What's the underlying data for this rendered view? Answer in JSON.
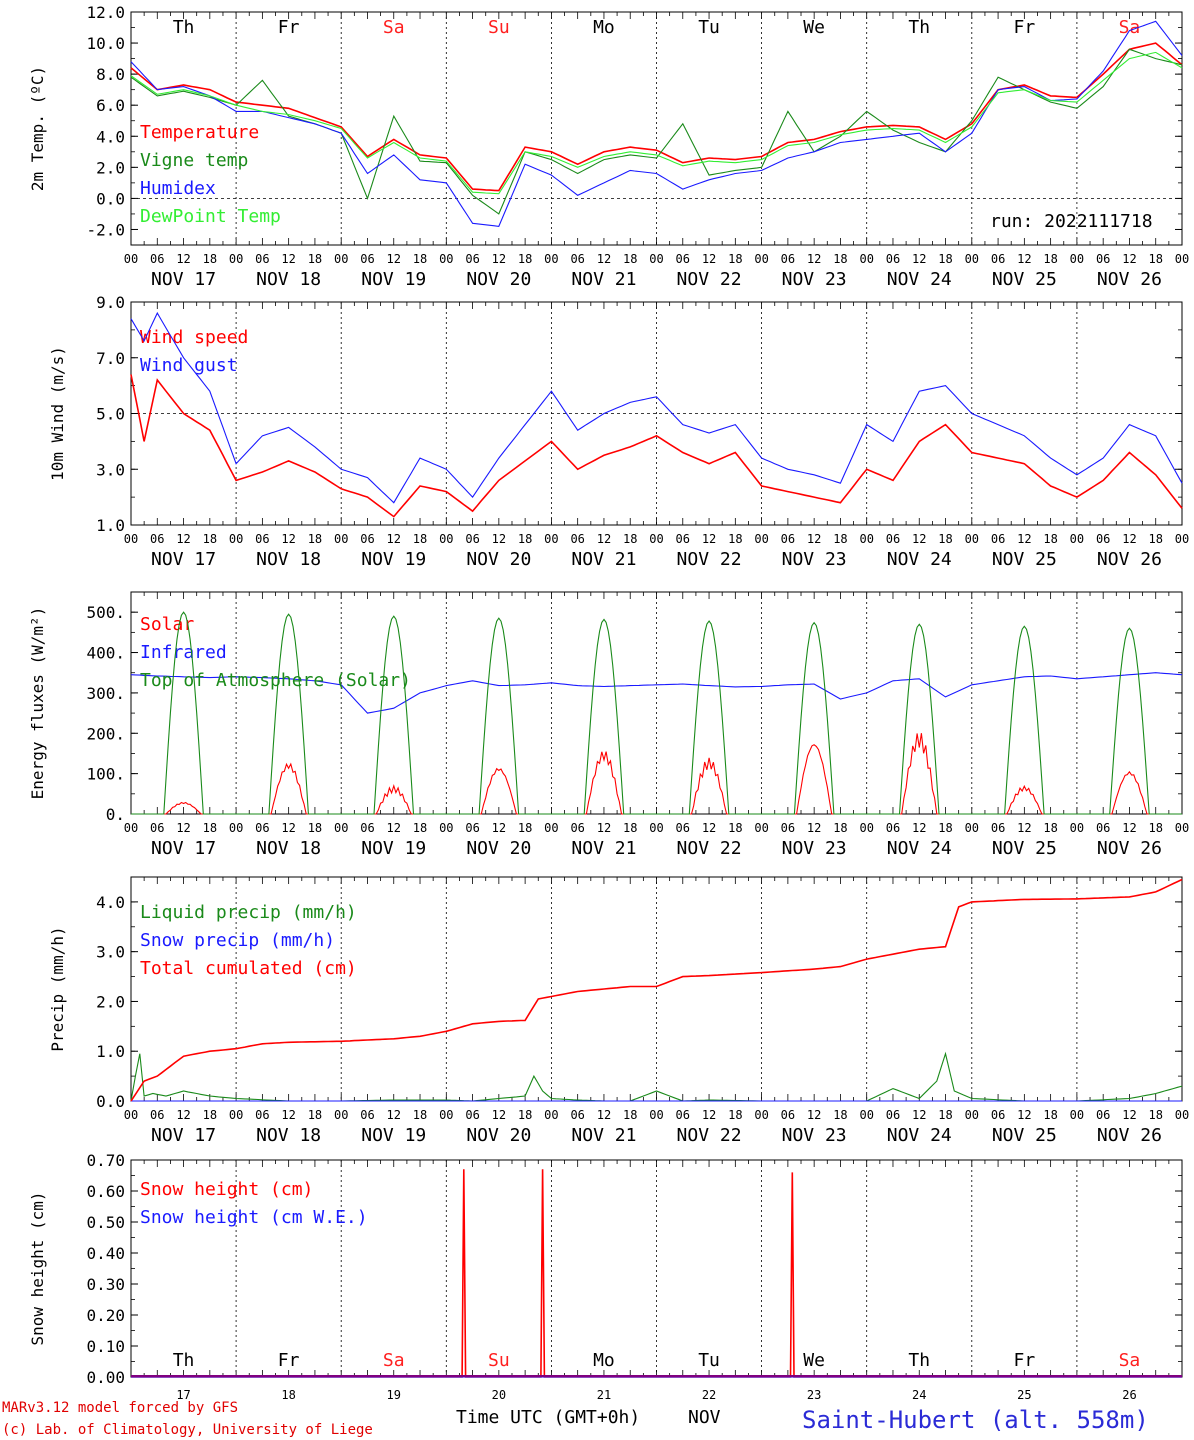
{
  "colors": {
    "red": "#ff0000",
    "green": "#1a8a1a",
    "blue": "#1a1aff",
    "lightgreen": "#33ee33",
    "weekend": "#ff2020",
    "purple": "#800080"
  },
  "dates": [
    "NOV 17",
    "NOV 18",
    "NOV 19",
    "NOV 20",
    "NOV 21",
    "NOV 22",
    "NOV 23",
    "NOV 24",
    "NOV 25",
    "NOV 26"
  ],
  "day_numbers": [
    "17",
    "18",
    "19",
    "20",
    "21",
    "22",
    "23",
    "24",
    "25",
    "26"
  ],
  "weekdays": [
    "Th",
    "Fr",
    "Sa",
    "Su",
    "Mo",
    "Tu",
    "We",
    "Th",
    "Fr",
    "Sa"
  ],
  "weekend_flags": [
    false,
    false,
    true,
    true,
    false,
    false,
    false,
    false,
    false,
    true
  ],
  "hour_ticks": [
    "00",
    "06",
    "12",
    "18"
  ],
  "final_hour_tick": "00",
  "run_label": "run: 2022111718",
  "footer": {
    "model": "MARv3.12 model forced by GFS",
    "lab": "(c) Lab. of Climatology, University of Liege",
    "time_axis": "Time UTC (GMT+0h)",
    "month": "NOV",
    "station": "Saint-Hubert (alt. 558m)"
  },
  "chart_data": [
    {
      "type": "line",
      "ylabel": "2m Temp. (ºC)",
      "ylim": [
        -3,
        12
      ],
      "yticks": [
        "12.0",
        "10.0",
        "8.0",
        "6.0",
        "4.0",
        "2.0",
        "0.0",
        "-2.0"
      ],
      "x_unit": "hours since NOV 17 00 UTC",
      "series": [
        {
          "name": "Temperature",
          "color": "red",
          "x": [
            0,
            6,
            12,
            18,
            24,
            30,
            36,
            42,
            48,
            54,
            60,
            66,
            72,
            78,
            84,
            90,
            96,
            102,
            108,
            114,
            120,
            126,
            132,
            138,
            144,
            150,
            156,
            162,
            168,
            174,
            180,
            186,
            192,
            198,
            204,
            210,
            216,
            222,
            228,
            234,
            240
          ],
          "values": [
            8.4,
            7.0,
            7.3,
            7.0,
            6.2,
            6.0,
            5.8,
            5.2,
            4.6,
            2.7,
            3.8,
            2.8,
            2.6,
            0.6,
            0.5,
            3.3,
            3.0,
            2.2,
            3.0,
            3.3,
            3.1,
            2.3,
            2.6,
            2.5,
            2.7,
            3.6,
            3.8,
            4.3,
            4.6,
            4.7,
            4.6,
            3.8,
            4.8,
            7.0,
            7.3,
            6.6,
            6.5,
            8.0,
            9.6,
            10.0,
            8.6
          ]
        },
        {
          "name": "Vigne temp",
          "color": "green",
          "x": [
            0,
            6,
            12,
            18,
            24,
            30,
            36,
            42,
            48,
            54,
            60,
            66,
            72,
            78,
            84,
            90,
            96,
            102,
            108,
            114,
            120,
            126,
            132,
            138,
            144,
            150,
            156,
            162,
            168,
            174,
            180,
            186,
            192,
            198,
            204,
            210,
            216,
            222,
            228,
            234,
            240
          ],
          "values": [
            7.8,
            6.6,
            6.9,
            6.5,
            6.0,
            7.6,
            5.3,
            4.8,
            4.2,
            0.0,
            5.3,
            2.4,
            2.3,
            0.2,
            -1.0,
            3.0,
            2.5,
            1.6,
            2.5,
            2.8,
            2.6,
            4.8,
            1.5,
            1.8,
            2.0,
            5.6,
            3.0,
            4.0,
            5.6,
            4.4,
            3.6,
            3.0,
            5.0,
            7.8,
            7.0,
            6.2,
            5.8,
            7.2,
            9.6,
            9.0,
            8.6
          ]
        },
        {
          "name": "Humidex",
          "color": "blue",
          "x": [
            0,
            6,
            12,
            18,
            24,
            30,
            36,
            42,
            48,
            54,
            60,
            66,
            72,
            78,
            84,
            90,
            96,
            102,
            108,
            114,
            120,
            126,
            132,
            138,
            144,
            150,
            156,
            162,
            168,
            174,
            180,
            186,
            192,
            198,
            204,
            210,
            216,
            222,
            228,
            234,
            240
          ],
          "values": [
            8.8,
            7.0,
            7.2,
            6.6,
            5.6,
            5.6,
            5.2,
            4.8,
            4.2,
            1.6,
            2.8,
            1.2,
            1.0,
            -1.6,
            -1.8,
            2.2,
            1.5,
            0.2,
            1.0,
            1.8,
            1.6,
            0.6,
            1.2,
            1.6,
            1.8,
            2.6,
            3.0,
            3.6,
            3.8,
            4.0,
            4.2,
            3.0,
            4.2,
            7.0,
            7.2,
            6.3,
            6.4,
            8.2,
            10.8,
            11.4,
            9.2
          ]
        },
        {
          "name": "DewPoint Temp",
          "color": "lightgreen",
          "x": [
            0,
            6,
            12,
            18,
            24,
            30,
            36,
            42,
            48,
            54,
            60,
            66,
            72,
            78,
            84,
            90,
            96,
            102,
            108,
            114,
            120,
            126,
            132,
            138,
            144,
            150,
            156,
            162,
            168,
            174,
            180,
            186,
            192,
            198,
            204,
            210,
            216,
            222,
            228,
            234,
            240
          ],
          "values": [
            7.9,
            6.7,
            7.0,
            6.6,
            6.0,
            5.6,
            5.4,
            5.0,
            4.5,
            2.6,
            3.6,
            2.6,
            2.4,
            0.4,
            0.3,
            3.0,
            2.7,
            2.0,
            2.7,
            3.0,
            2.8,
            2.1,
            2.4,
            2.3,
            2.5,
            3.4,
            3.6,
            4.1,
            4.4,
            4.5,
            4.4,
            3.6,
            4.6,
            6.8,
            7.0,
            6.3,
            6.2,
            7.6,
            9.0,
            9.4,
            8.4
          ]
        }
      ]
    },
    {
      "type": "line",
      "ylabel": "10m Wind (m/s)",
      "ylim": [
        1,
        9
      ],
      "yticks": [
        "9.0",
        "7.0",
        "5.0",
        "3.0",
        "1.0"
      ],
      "x_unit": "hours since NOV 17 00 UTC",
      "series": [
        {
          "name": "Wind speed",
          "color": "red",
          "x": [
            0,
            3,
            6,
            12,
            18,
            24,
            30,
            36,
            42,
            48,
            54,
            60,
            66,
            72,
            78,
            84,
            90,
            96,
            102,
            108,
            114,
            120,
            126,
            132,
            138,
            144,
            150,
            156,
            162,
            168,
            174,
            180,
            186,
            192,
            198,
            204,
            210,
            216,
            222,
            228,
            234,
            240
          ],
          "values": [
            6.4,
            4.0,
            6.2,
            5.0,
            4.4,
            2.6,
            2.9,
            3.3,
            2.9,
            2.3,
            2.0,
            1.3,
            2.4,
            2.2,
            1.5,
            2.6,
            3.3,
            4.0,
            3.0,
            3.5,
            3.8,
            4.2,
            3.6,
            3.2,
            3.6,
            2.4,
            2.2,
            2.0,
            1.8,
            3.0,
            2.6,
            4.0,
            4.6,
            3.6,
            3.4,
            3.2,
            2.4,
            2.0,
            2.6,
            3.6,
            2.8,
            1.6
          ]
        },
        {
          "name": "Wind gust",
          "color": "blue",
          "x": [
            0,
            3,
            6,
            12,
            18,
            24,
            30,
            36,
            42,
            48,
            54,
            60,
            66,
            72,
            78,
            84,
            90,
            96,
            102,
            108,
            114,
            120,
            126,
            132,
            138,
            144,
            150,
            156,
            162,
            168,
            174,
            180,
            186,
            192,
            198,
            204,
            210,
            216,
            222,
            228,
            234,
            240
          ],
          "values": [
            8.4,
            7.6,
            8.6,
            7.0,
            5.8,
            3.2,
            4.2,
            4.5,
            3.8,
            3.0,
            2.7,
            1.8,
            3.4,
            3.0,
            2.0,
            3.4,
            4.6,
            5.8,
            4.4,
            5.0,
            5.4,
            5.6,
            4.6,
            4.3,
            4.6,
            3.4,
            3.0,
            2.8,
            2.5,
            4.6,
            4.0,
            5.8,
            6.0,
            5.0,
            4.6,
            4.2,
            3.4,
            2.8,
            3.4,
            4.6,
            4.2,
            2.5
          ]
        }
      ]
    },
    {
      "type": "line",
      "ylabel": "Energy fluxes (W/m²)",
      "ylim": [
        0,
        550
      ],
      "yticks": [
        "500.",
        "400.",
        "300.",
        "200.",
        "100.",
        "0."
      ],
      "x_unit": "hours since NOV 17 00 UTC",
      "toa_peaks": [
        500,
        495,
        490,
        485,
        482,
        478,
        474,
        470,
        465,
        460
      ],
      "solar_peaks": [
        30,
        130,
        70,
        120,
        160,
        140,
        185,
        205,
        70,
        110
      ],
      "series": [
        {
          "name": "Solar",
          "color": "red"
        },
        {
          "name": "Infrared",
          "color": "blue",
          "x": [
            0,
            6,
            12,
            18,
            24,
            30,
            36,
            42,
            48,
            54,
            60,
            66,
            72,
            78,
            84,
            90,
            96,
            102,
            108,
            114,
            120,
            126,
            132,
            138,
            144,
            150,
            156,
            162,
            168,
            174,
            180,
            186,
            192,
            198,
            204,
            210,
            216,
            222,
            228,
            234,
            240
          ],
          "values": [
            345,
            342,
            340,
            338,
            340,
            338,
            335,
            330,
            320,
            250,
            262,
            300,
            318,
            330,
            318,
            320,
            325,
            318,
            316,
            318,
            320,
            322,
            318,
            315,
            316,
            320,
            322,
            285,
            300,
            330,
            335,
            290,
            320,
            330,
            340,
            342,
            335,
            340,
            345,
            350,
            345
          ]
        },
        {
          "name": "Top of Atmosphere (Solar)",
          "color": "green"
        }
      ]
    },
    {
      "type": "line",
      "ylabel": "Precip (mm/h)",
      "ylim": [
        0,
        4.5
      ],
      "yticks": [
        "4.0",
        "3.0",
        "2.0",
        "1.0",
        "0.0"
      ],
      "x_unit": "hours since NOV 17 00 UTC",
      "series": [
        {
          "name": "Liquid precip (mm/h)",
          "color": "green",
          "x": [
            0,
            1,
            2,
            3,
            5,
            8,
            12,
            18,
            24,
            36,
            48,
            60,
            72,
            78,
            84,
            90,
            92,
            94,
            96,
            102,
            108,
            114,
            120,
            126,
            132,
            144,
            156,
            168,
            174,
            180,
            184,
            186,
            188,
            192,
            204,
            216,
            228,
            234,
            240
          ],
          "values": [
            0,
            0.5,
            0.95,
            0.1,
            0.15,
            0.1,
            0.2,
            0.1,
            0.05,
            0,
            0,
            0.02,
            0.02,
            0,
            0.05,
            0.1,
            0.5,
            0.2,
            0.05,
            0.02,
            0,
            0,
            0.2,
            0,
            0.02,
            0,
            0,
            0,
            0.25,
            0.05,
            0.4,
            0.95,
            0.2,
            0.05,
            0,
            0,
            0.05,
            0.15,
            0.3
          ]
        },
        {
          "name": "Snow precip (mm/h)",
          "color": "blue",
          "x": [
            0,
            240
          ],
          "values": [
            0,
            0
          ]
        },
        {
          "name": "Total cumulated (cm)",
          "color": "red",
          "x": [
            0,
            3,
            6,
            12,
            18,
            24,
            30,
            36,
            48,
            60,
            66,
            72,
            78,
            84,
            90,
            93,
            96,
            102,
            108,
            114,
            120,
            126,
            132,
            144,
            156,
            162,
            168,
            174,
            180,
            186,
            189,
            192,
            204,
            216,
            222,
            228,
            234,
            240
          ],
          "values": [
            0,
            0.4,
            0.5,
            0.9,
            1.0,
            1.05,
            1.15,
            1.18,
            1.2,
            1.25,
            1.3,
            1.4,
            1.55,
            1.6,
            1.62,
            2.05,
            2.1,
            2.2,
            2.25,
            2.3,
            2.3,
            2.5,
            2.52,
            2.58,
            2.65,
            2.7,
            2.85,
            2.95,
            3.05,
            3.1,
            3.9,
            4.0,
            4.05,
            4.06,
            4.08,
            4.1,
            4.2,
            4.45
          ]
        }
      ]
    },
    {
      "type": "line",
      "ylabel": "Snow height (cm)",
      "ylim": [
        0,
        0.7
      ],
      "yticks": [
        "0.70",
        "0.60",
        "0.50",
        "0.40",
        "0.30",
        "0.20",
        "0.10",
        "0.00"
      ],
      "x_unit": "hours since NOV 17 00 UTC",
      "series": [
        {
          "name": "Snow height (cm)",
          "color": "red",
          "spikes": [
            {
              "x": 76,
              "value": 0.67
            },
            {
              "x": 94,
              "value": 0.67
            },
            {
              "x": 151,
              "value": 0.66
            }
          ]
        },
        {
          "name": "Snow height (cm W.E.)",
          "color": "blue",
          "spikes": []
        }
      ]
    }
  ]
}
